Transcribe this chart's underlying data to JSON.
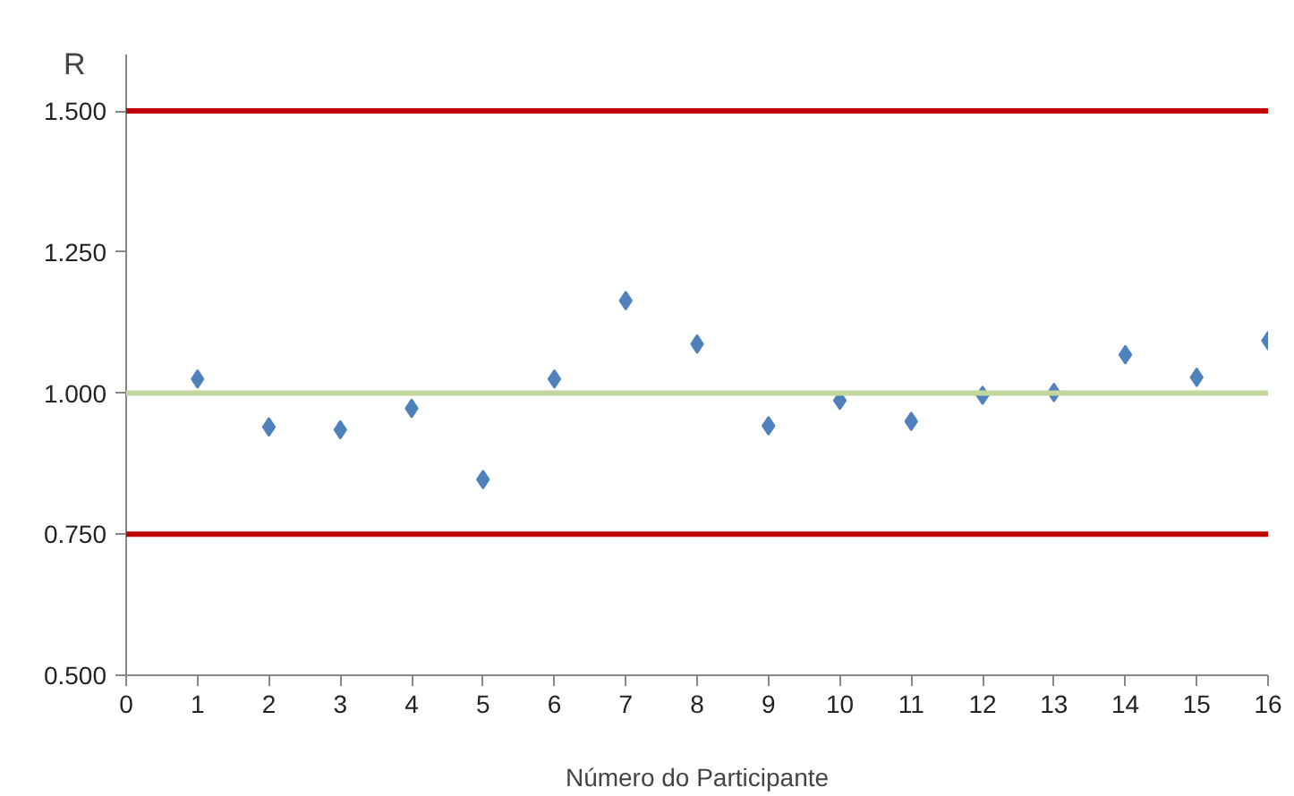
{
  "chart_data": {
    "type": "scatter",
    "xlabel": "Número do Participante",
    "ylabel": "R",
    "x": [
      1,
      2,
      3,
      4,
      5,
      6,
      7,
      8,
      9,
      10,
      11,
      12,
      13,
      14,
      15,
      16
    ],
    "series": [
      {
        "color": "#4f81bd",
        "values": [
          1.025,
          0.94,
          0.935,
          0.973,
          0.847,
          1.025,
          1.164,
          1.087,
          0.942,
          0.987,
          0.95,
          0.996,
          1.001,
          1.068,
          1.028,
          1.093
        ]
      }
    ],
    "xlim": [
      0,
      16
    ],
    "xticks": [
      0,
      1,
      2,
      3,
      4,
      5,
      6,
      7,
      8,
      9,
      10,
      11,
      12,
      13,
      14,
      15,
      16
    ],
    "ylim": [
      0.5,
      1.6
    ],
    "yticks": [
      {
        "value": 0.5,
        "label": "0.500"
      },
      {
        "value": 0.75,
        "label": "0.750"
      },
      {
        "value": 1.0,
        "label": "1.000"
      },
      {
        "value": 1.25,
        "label": "1.250"
      },
      {
        "value": 1.5,
        "label": "1.500"
      }
    ],
    "ref_lines": [
      {
        "axis": "y",
        "value": 1.5,
        "color": "#c00000"
      },
      {
        "axis": "y",
        "value": 0.75,
        "color": "#c00000"
      },
      {
        "axis": "y",
        "value": 1.0,
        "color": "#c3d69b"
      }
    ],
    "grid": false,
    "marker": "diamond"
  }
}
